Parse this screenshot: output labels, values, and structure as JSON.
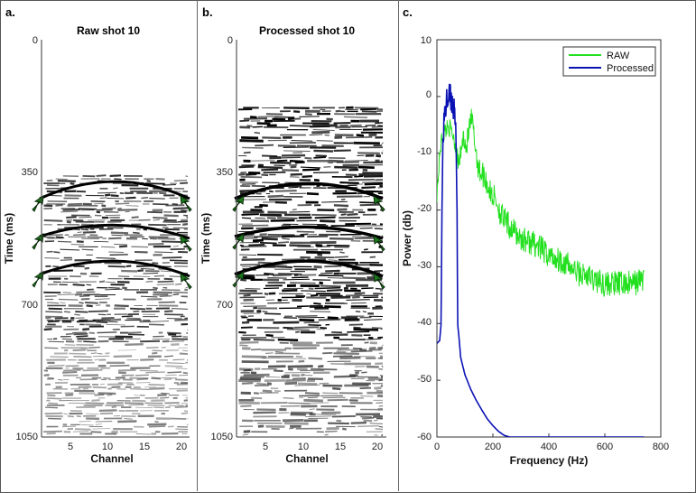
{
  "panels": {
    "a": {
      "letter": "a.",
      "title": "Raw shot 10",
      "xlabel": "Channel",
      "ylabel": "Time (ms)",
      "xticks": [
        "5",
        "10",
        "15",
        "20"
      ],
      "yticks": [
        "0",
        "350",
        "700",
        "1050"
      ]
    },
    "b": {
      "letter": "b.",
      "title": "Processed shot 10",
      "xlabel": "Channel",
      "ylabel": "Time (ms)",
      "xticks": [
        "5",
        "10",
        "15",
        "20"
      ],
      "yticks": [
        "0",
        "350",
        "700",
        "1050"
      ]
    },
    "c": {
      "letter": "c.",
      "xlabel": "Frequency (Hz)",
      "ylabel": "Power (db)",
      "xticks": [
        "0",
        "200",
        "400",
        "600",
        "800"
      ],
      "yticks": [
        "10",
        "0",
        "-10",
        "-20",
        "-30",
        "-40",
        "-50",
        "-60"
      ]
    }
  },
  "colors": {
    "raw": "#22e01e",
    "processed": "#0a12b4",
    "arrow": "#1c7a1c",
    "seismic": "#000000"
  },
  "chart_data": [
    {
      "type": "heatmap",
      "title": "Raw shot 10",
      "xlabel": "Channel",
      "ylabel": "Time (ms)",
      "xlim": [
        1,
        20
      ],
      "ylim": [
        1050,
        0
      ],
      "picked_horizons_ms": [
        [
          420,
          375,
          420
        ],
        [
          520,
          490,
          525
        ],
        [
          620,
          585,
          625
        ]
      ],
      "arrow_count": 6
    },
    {
      "type": "heatmap",
      "title": "Processed shot 10",
      "xlabel": "Channel",
      "ylabel": "Time (ms)",
      "xlim": [
        1,
        20
      ],
      "ylim": [
        1050,
        0
      ],
      "picked_horizons_ms": [
        [
          420,
          380,
          420
        ],
        [
          520,
          495,
          525
        ],
        [
          620,
          585,
          625
        ]
      ],
      "arrow_count": 6
    },
    {
      "type": "line",
      "xlabel": "Frequency (Hz)",
      "ylabel": "Power (db)",
      "xlim": [
        0,
        800
      ],
      "ylim": [
        -60,
        10
      ],
      "legend_position": "top-right",
      "series": [
        {
          "name": "RAW",
          "x": [
            0,
            5,
            12,
            20,
            30,
            40,
            50,
            60,
            70,
            78,
            85,
            95,
            105,
            115,
            125,
            135,
            150,
            170,
            190,
            210,
            230,
            260,
            300,
            350,
            400,
            450,
            500,
            550,
            600,
            650,
            700,
            740
          ],
          "values": [
            -17,
            -14,
            -9,
            -7,
            -6,
            -5,
            -6,
            -7,
            -10,
            -12,
            -10,
            -7,
            -9,
            -6,
            -4,
            -8,
            -13,
            -14,
            -17,
            -18,
            -21,
            -23,
            -25,
            -26,
            -28,
            -29,
            -31,
            -32,
            -33,
            -33,
            -33,
            -32
          ]
        },
        {
          "name": "Processed",
          "x": [
            0,
            10,
            15,
            18,
            22,
            28,
            35,
            45,
            55,
            62,
            68,
            72,
            74,
            78,
            85,
            100,
            120,
            140,
            160,
            180,
            200,
            220,
            240,
            260,
            270,
            300,
            400,
            500,
            600,
            740
          ],
          "values": [
            -43.5,
            -43,
            -40,
            -20,
            -6,
            -3,
            -1,
            0,
            -1,
            -3,
            -7,
            -20,
            -40,
            -42,
            -46,
            -49,
            -51.5,
            -53.5,
            -55.2,
            -56.8,
            -58,
            -59,
            -59.7,
            -60,
            -60,
            -60,
            -60,
            -60,
            -60,
            -60
          ]
        }
      ]
    }
  ]
}
